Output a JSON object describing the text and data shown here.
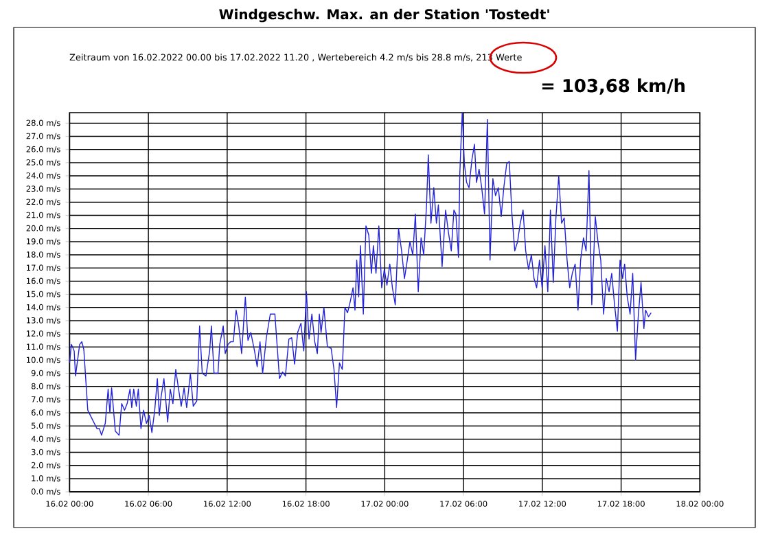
{
  "chart_data": {
    "type": "line",
    "title": "Windgeschw. Max. an der Station 'Tostedt'",
    "subtitle": "Zeitraum von 16.02.2022 00.00 bis 17.02.2022 11.20 , Wertebereich 4.2 m/s bis 28.8 m/s, 213 Werte",
    "annotations": [
      "= 103,68 km/h"
    ],
    "x": [
      "2022-02-16T00:00",
      "2022-02-16T00:08",
      "2022-02-16T00:21",
      "2022-02-16T00:27",
      "2022-02-16T00:46",
      "2022-02-16T00:56",
      "2022-02-16T01:05",
      "2022-02-16T01:23",
      "2022-02-16T01:44",
      "2022-02-16T02:05",
      "2022-02-16T02:16",
      "2022-02-16T02:26",
      "2022-02-16T02:43",
      "2022-02-16T02:56",
      "2022-02-16T03:04",
      "2022-02-16T03:12",
      "2022-02-16T03:29",
      "2022-02-16T03:46",
      "2022-02-16T03:58",
      "2022-02-16T04:11",
      "2022-02-16T04:23",
      "2022-02-16T04:36",
      "2022-02-16T04:44",
      "2022-02-16T04:53",
      "2022-02-16T05:05",
      "2022-02-16T05:14",
      "2022-02-16T05:26",
      "2022-02-16T05:38",
      "2022-02-16T05:51",
      "2022-02-16T06:04",
      "2022-02-16T06:16",
      "2022-02-16T06:29",
      "2022-02-16T06:41",
      "2022-02-16T06:50",
      "2022-02-16T06:58",
      "2022-02-16T07:11",
      "2022-02-16T07:28",
      "2022-02-16T07:40",
      "2022-02-16T07:52",
      "2022-02-16T08:05",
      "2022-02-16T08:17",
      "2022-02-16T08:30",
      "2022-02-16T08:43",
      "2022-02-16T08:55",
      "2022-02-16T09:12",
      "2022-02-16T09:25",
      "2022-02-16T09:41",
      "2022-02-16T09:54",
      "2022-02-16T10:06",
      "2022-02-16T10:23",
      "2022-02-16T10:40",
      "2022-02-16T10:48",
      "2022-02-16T11:00",
      "2022-02-16T11:18",
      "2022-02-16T11:26",
      "2022-02-16T11:42",
      "2022-02-16T11:51",
      "2022-02-16T12:04",
      "2022-02-16T12:16",
      "2022-02-16T12:28",
      "2022-02-16T12:41",
      "2022-02-16T12:53",
      "2022-02-16T13:06",
      "2022-02-16T13:23",
      "2022-02-16T13:35",
      "2022-02-16T13:48",
      "2022-02-16T14:05",
      "2022-02-16T14:17",
      "2022-02-16T14:30",
      "2022-02-16T14:42",
      "2022-02-16T14:59",
      "2022-02-16T15:17",
      "2022-02-16T15:38",
      "2022-02-16T15:59",
      "2022-02-16T16:13",
      "2022-02-16T16:26",
      "2022-02-16T16:42",
      "2022-02-16T16:55",
      "2022-02-16T17:08",
      "2022-02-16T17:22",
      "2022-02-16T17:37",
      "2022-02-16T17:50",
      "2022-02-16T18:02",
      "2022-02-16T18:14",
      "2022-02-16T18:27",
      "2022-02-16T18:40",
      "2022-02-16T18:52",
      "2022-02-16T19:01",
      "2022-02-16T19:09",
      "2022-02-16T19:22",
      "2022-02-16T19:38",
      "2022-02-16T19:55",
      "2022-02-16T20:08",
      "2022-02-16T20:20",
      "2022-02-16T20:33",
      "2022-02-16T20:46",
      "2022-02-16T20:58",
      "2022-02-16T21:10",
      "2022-02-16T21:23",
      "2022-02-16T21:35",
      "2022-02-16T21:44",
      "2022-02-16T21:52",
      "2022-02-16T22:01",
      "2022-02-16T22:09",
      "2022-02-16T22:22",
      "2022-02-16T22:34",
      "2022-02-16T22:47",
      "2022-02-16T22:59",
      "2022-02-16T23:08",
      "2022-02-16T23:20",
      "2022-02-16T23:33",
      "2022-02-16T23:46",
      "2022-02-16T23:58",
      "2022-02-17T00:10",
      "2022-02-17T00:23",
      "2022-02-17T00:35",
      "2022-02-17T00:48",
      "2022-02-17T01:03",
      "2022-02-17T01:17",
      "2022-02-17T01:30",
      "2022-02-17T01:43",
      "2022-02-17T01:55",
      "2022-02-17T02:08",
      "2022-02-17T02:20",
      "2022-02-17T02:33",
      "2022-02-17T02:46",
      "2022-02-17T02:58",
      "2022-02-17T03:11",
      "2022-02-17T03:19",
      "2022-02-17T03:31",
      "2022-02-17T03:44",
      "2022-02-17T03:56",
      "2022-02-17T04:05",
      "2022-02-17T04:22",
      "2022-02-17T04:38",
      "2022-02-17T04:51",
      "2022-02-17T05:04",
      "2022-02-17T05:16",
      "2022-02-17T05:25",
      "2022-02-17T05:37",
      "2022-02-17T05:43",
      "2022-02-17T05:54",
      "2022-02-17T06:04",
      "2022-02-17T06:14",
      "2022-02-17T06:25",
      "2022-02-17T06:38",
      "2022-02-17T06:50",
      "2022-02-17T06:59",
      "2022-02-17T07:11",
      "2022-02-17T07:23",
      "2022-02-17T07:36",
      "2022-02-17T07:49",
      "2022-02-17T08:01",
      "2022-02-17T08:14",
      "2022-02-17T08:26",
      "2022-02-17T08:39",
      "2022-02-17T08:52",
      "2022-02-17T09:04",
      "2022-02-17T09:17",
      "2022-02-17T09:29",
      "2022-02-17T09:41",
      "2022-02-17T09:54",
      "2022-02-17T10:07",
      "2022-02-17T10:19",
      "2022-02-17T10:32",
      "2022-02-17T10:44",
      "2022-02-17T10:57",
      "2022-02-17T11:10",
      "2022-02-17T11:22",
      "2022-02-17T11:34",
      "2022-02-17T11:47",
      "2022-02-17T11:59",
      "2022-02-17T12:12",
      "2022-02-17T12:25",
      "2022-02-17T12:37",
      "2022-02-17T12:50",
      "2022-02-17T13:02",
      "2022-02-17T13:15",
      "2022-02-17T13:28",
      "2022-02-17T13:40",
      "2022-02-17T13:53",
      "2022-02-17T14:05",
      "2022-02-17T14:17",
      "2022-02-17T14:30",
      "2022-02-17T14:43",
      "2022-02-17T14:55",
      "2022-02-17T15:08",
      "2022-02-17T15:20",
      "2022-02-17T15:33",
      "2022-02-17T15:46",
      "2022-02-17T16:02",
      "2022-02-17T16:14",
      "2022-02-17T16:27",
      "2022-02-17T16:40",
      "2022-02-17T16:52",
      "2022-02-17T17:05",
      "2022-02-17T17:17",
      "2022-02-17T17:30",
      "2022-02-17T17:43",
      "2022-02-17T17:55",
      "2022-02-17T18:07",
      "2022-02-17T18:16",
      "2022-02-17T18:28",
      "2022-02-17T18:41",
      "2022-02-17T18:53",
      "2022-02-17T19:06",
      "2022-02-17T19:19",
      "2022-02-17T19:31",
      "2022-02-17T19:44",
      "2022-02-17T19:52",
      "2022-02-17T20:05",
      "2022-02-17T20:17"
    ],
    "series": [
      {
        "color": "#2222dd",
        "values": [
          9.8,
          11.2,
          10.7,
          8.8,
          11.2,
          11.4,
          10.8,
          6.2,
          5.5,
          4.8,
          4.8,
          4.3,
          5.2,
          7.8,
          6.0,
          7.9,
          4.6,
          4.3,
          6.7,
          6.2,
          6.7,
          7.8,
          6.4,
          7.8,
          6.5,
          7.8,
          4.8,
          6.2,
          5.2,
          5.8,
          4.5,
          6.2,
          8.6,
          5.8,
          7.2,
          8.6,
          5.3,
          7.8,
          6.7,
          9.3,
          7.9,
          6.5,
          7.9,
          6.4,
          9.0,
          6.5,
          6.9,
          12.6,
          9.0,
          8.8,
          10.7,
          12.6,
          9.0,
          9.0,
          11.2,
          12.6,
          10.5,
          11.2,
          11.4,
          11.4,
          13.8,
          12.6,
          10.5,
          14.8,
          11.5,
          12.1,
          10.7,
          9.5,
          11.4,
          9.0,
          11.7,
          13.5,
          13.5,
          8.6,
          9.1,
          8.8,
          11.6,
          11.7,
          9.7,
          12.1,
          12.8,
          10.7,
          15.2,
          11.6,
          13.5,
          11.4,
          10.5,
          13.5,
          12.1,
          14.0,
          11.0,
          10.9,
          9.3,
          6.4,
          9.8,
          9.3,
          14.0,
          13.6,
          14.5,
          15.5,
          13.8,
          17.6,
          14.8,
          18.7,
          13.5,
          20.2,
          19.5,
          16.6,
          18.7,
          16.6,
          20.2,
          15.5,
          16.9,
          15.7,
          17.3,
          15.5,
          14.2,
          20.0,
          18.3,
          16.2,
          17.6,
          19.0,
          18.0,
          21.1,
          15.2,
          19.3,
          18.0,
          21.8,
          25.6,
          20.4,
          23.1,
          20.4,
          21.8,
          17.1,
          21.4,
          19.7,
          18.3,
          21.4,
          21.1,
          17.8,
          24.2,
          28.8,
          24.9,
          23.5,
          23.1,
          25.2,
          26.4,
          23.5,
          24.5,
          23.1,
          21.1,
          28.3,
          17.6,
          23.8,
          22.5,
          23.1,
          20.9,
          23.1,
          24.9,
          25.1,
          21.1,
          18.3,
          19.0,
          20.4,
          21.4,
          18.3,
          16.9,
          18.0,
          16.2,
          15.5,
          17.6,
          15.5,
          18.7,
          15.2,
          21.4,
          15.9,
          20.8,
          24.0,
          20.4,
          20.8,
          17.6,
          15.5,
          16.6,
          17.3,
          13.8,
          17.6,
          19.3,
          18.3,
          24.4,
          14.2,
          20.9,
          19.0,
          17.6,
          13.5,
          16.2,
          15.2,
          16.6,
          14.2,
          12.2,
          17.6,
          16.2,
          17.3,
          14.8,
          13.5,
          16.6,
          10.0,
          13.5,
          15.9,
          12.4,
          13.8,
          13.3,
          13.6
        ]
      }
    ],
    "xlim": [
      "2022-02-16T00:00",
      "2022-02-18T00:00"
    ],
    "ylim": [
      0,
      28.8
    ],
    "xticks": [
      {
        "value": "2022-02-16T00:00",
        "label": "16.02 00:00"
      },
      {
        "value": "2022-02-16T06:00",
        "label": "16.02 06:00"
      },
      {
        "value": "2022-02-16T12:00",
        "label": "16.02 12:00"
      },
      {
        "value": "2022-02-16T18:00",
        "label": "16.02 18:00"
      },
      {
        "value": "2022-02-17T00:00",
        "label": "17.02 00:00"
      },
      {
        "value": "2022-02-17T06:00",
        "label": "17.02 06:00"
      },
      {
        "value": "2022-02-17T12:00",
        "label": "17.02 12:00"
      },
      {
        "value": "2022-02-17T18:00",
        "label": "17.02 18:00"
      },
      {
        "value": "2022-02-18T00:00",
        "label": "18.02 00:00"
      }
    ],
    "yticks": [
      {
        "value": 0,
        "label": "0.0 m/s"
      },
      {
        "value": 1,
        "label": "1.0 m/s"
      },
      {
        "value": 2,
        "label": "2.0 m/s"
      },
      {
        "value": 3,
        "label": "3.0 m/s"
      },
      {
        "value": 4,
        "label": "4.0 m/s"
      },
      {
        "value": 5,
        "label": "5.0 m/s"
      },
      {
        "value": 6,
        "label": "6.0 m/s"
      },
      {
        "value": 7,
        "label": "7.0 m/s"
      },
      {
        "value": 8,
        "label": "8.0 m/s"
      },
      {
        "value": 9,
        "label": "9.0 m/s"
      },
      {
        "value": 10,
        "label": "10.0 m/s"
      },
      {
        "value": 11,
        "label": "11.0 m/s"
      },
      {
        "value": 12,
        "label": "12.0 m/s"
      },
      {
        "value": 13,
        "label": "13.0 m/s"
      },
      {
        "value": 14,
        "label": "14.0 m/s"
      },
      {
        "value": 15,
        "label": "15.0 m/s"
      },
      {
        "value": 16,
        "label": "16.0 m/s"
      },
      {
        "value": 17,
        "label": "17.0 m/s"
      },
      {
        "value": 18,
        "label": "18.0 m/s"
      },
      {
        "value": 19,
        "label": "19.0 m/s"
      },
      {
        "value": 20,
        "label": "20.0 m/s"
      },
      {
        "value": 21,
        "label": "21.0 m/s"
      },
      {
        "value": 22,
        "label": "22.0 m/s"
      },
      {
        "value": 23,
        "label": "23.0 m/s"
      },
      {
        "value": 24,
        "label": "24.0 m/s"
      },
      {
        "value": 25,
        "label": "25.0 m/s"
      },
      {
        "value": 26,
        "label": "26.0 m/s"
      },
      {
        "value": 27,
        "label": "27.0 m/s"
      },
      {
        "value": 28,
        "label": "28.0 m/s"
      }
    ],
    "grid": true,
    "marker": "none",
    "line_style": "solid"
  }
}
